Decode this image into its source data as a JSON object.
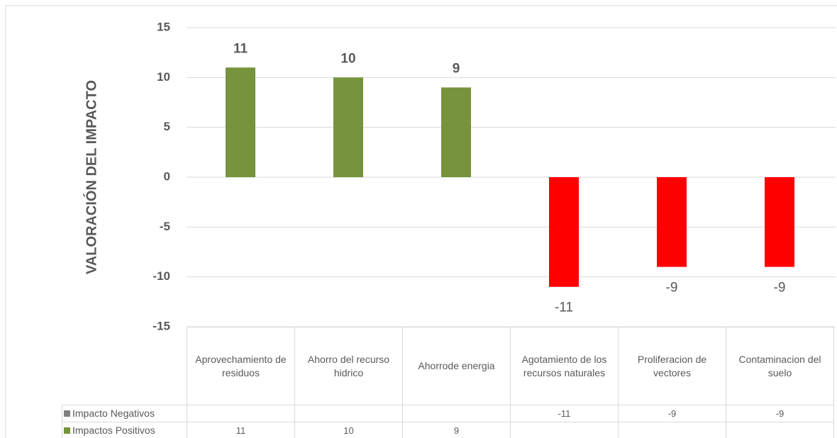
{
  "chart_data": {
    "type": "bar",
    "y_label": "VALORACIÓN DEL IMPACTO",
    "categories": [
      "Aprovechamiento de residuos",
      "Ahorro del recurso hidrico",
      "Ahorrode energia",
      "Agotamiento de los recursos naturales",
      "Proliferacion de vectores",
      "Contaminacion del suelo"
    ],
    "series": [
      {
        "name": "Impacto Negativos",
        "color": "#808080",
        "bar_color": "#ff0000",
        "values": [
          null,
          null,
          null,
          -11,
          -9,
          -9
        ]
      },
      {
        "name": "Impactos Positivos",
        "color": "#77933c",
        "bar_color": "#77933c",
        "values": [
          11,
          10,
          9,
          null,
          null,
          null
        ]
      }
    ],
    "ylim": [
      -15,
      15
    ],
    "yticks": [
      -15,
      -10,
      -5,
      0,
      5,
      10,
      15
    ],
    "grid": true,
    "data_table": true
  }
}
